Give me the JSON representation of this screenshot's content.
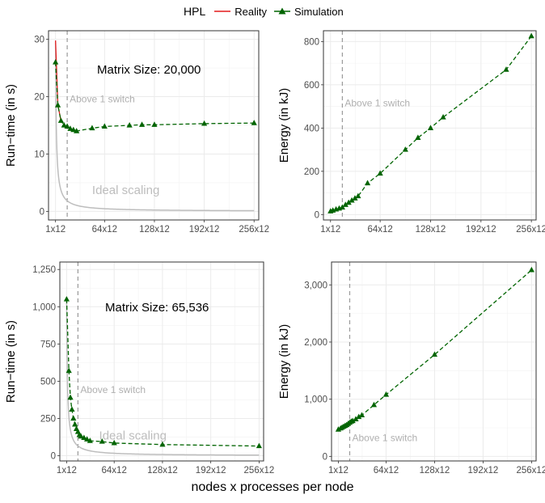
{
  "legend": {
    "title": "HPL",
    "items": [
      {
        "label": "Reality",
        "color": "#e31a1c",
        "shape": "line"
      },
      {
        "label": "Simulation",
        "color": "#006400",
        "shape": "line-triangle"
      }
    ]
  },
  "x_axis_label": "nodes x processes per node",
  "y_labels": {
    "runtime": "Run−time (in s)",
    "energy": "Energy (in kJ)"
  },
  "annotations": {
    "switch": "Above 1 switch",
    "ideal": "Ideal scaling"
  },
  "chart_data": [
    {
      "type": "line",
      "panel": "top-left",
      "annotation": "Matrix Size: 20,000",
      "xlim": [
        -8,
        262
      ],
      "ylim": [
        -1.5,
        31.5
      ],
      "x_ticks": [
        1,
        64,
        128,
        192,
        256
      ],
      "x_tick_labels": [
        "1x12",
        "64x12",
        "128x12",
        "192x12",
        "256x12"
      ],
      "y_ticks": [
        0,
        10,
        20,
        30
      ],
      "y_tick_labels": [
        "0",
        "10",
        "20",
        "30"
      ],
      "switch_x": 16,
      "ideal_t1": 29.5,
      "ideal_label_at": {
        "x": 48,
        "y": 3
      },
      "series": [
        {
          "name": "Reality",
          "color": "#e31a1c",
          "marker": "none",
          "x": [
            1,
            4,
            8
          ],
          "y": [
            29.8,
            18.6,
            15.8
          ]
        },
        {
          "name": "Simulation",
          "color": "#006400",
          "marker": "triangle",
          "x": [
            1,
            4,
            8,
            12,
            16,
            20,
            24,
            28,
            48,
            64,
            96,
            112,
            128,
            192,
            256
          ],
          "y": [
            26,
            18.5,
            15.8,
            15.0,
            14.8,
            14.4,
            14.2,
            14.0,
            14.5,
            14.8,
            15.0,
            15.1,
            15.1,
            15.3,
            15.4
          ]
        }
      ]
    },
    {
      "type": "line",
      "panel": "top-right",
      "xlim": [
        -8,
        262
      ],
      "ylim": [
        -25,
        850
      ],
      "x_ticks": [
        1,
        64,
        128,
        192,
        256
      ],
      "x_tick_labels": [
        "1x12",
        "64x12",
        "128x12",
        "192x12",
        "256x12"
      ],
      "y_ticks": [
        0,
        200,
        400,
        600,
        800
      ],
      "y_tick_labels": [
        "0",
        "200",
        "400",
        "600",
        "800"
      ],
      "switch_x": 16,
      "series": [
        {
          "name": "Simulation",
          "color": "#006400",
          "marker": "triangle",
          "x": [
            1,
            4,
            8,
            12,
            16,
            20,
            24,
            28,
            32,
            36,
            48,
            64,
            96,
            112,
            128,
            144,
            224,
            256
          ],
          "y": [
            15,
            19,
            24,
            28,
            33,
            45,
            55,
            65,
            75,
            85,
            145,
            190,
            300,
            355,
            400,
            450,
            670,
            825
          ]
        }
      ]
    },
    {
      "type": "line",
      "panel": "bottom-left",
      "annotation": "Matrix Size: 65,536",
      "xlim": [
        -8,
        262
      ],
      "ylim": [
        -35,
        1300
      ],
      "x_ticks": [
        1,
        64,
        128,
        192,
        256
      ],
      "x_tick_labels": [
        "1x12",
        "64x12",
        "128x12",
        "192x12",
        "256x12"
      ],
      "y_ticks": [
        0,
        250,
        500,
        750,
        1000,
        1250
      ],
      "y_tick_labels": [
        "0",
        "250",
        "500",
        "750",
        "1,000",
        "1,250"
      ],
      "switch_x": 16,
      "ideal_t1": 1050,
      "ideal_label_at": {
        "x": 44,
        "y": 110
      },
      "series": [
        {
          "name": "Simulation",
          "color": "#006400",
          "marker": "triangle",
          "x": [
            1,
            4,
            6,
            8,
            10,
            12,
            14,
            16,
            18,
            20,
            24,
            28,
            32,
            48,
            64,
            128,
            256
          ],
          "y": [
            1050,
            570,
            390,
            310,
            250,
            210,
            180,
            160,
            140,
            130,
            120,
            110,
            100,
            95,
            85,
            75,
            65
          ]
        }
      ]
    },
    {
      "type": "line",
      "panel": "bottom-right",
      "xlim": [
        -8,
        262
      ],
      "ylim": [
        -80,
        3400
      ],
      "x_ticks": [
        1,
        64,
        128,
        192,
        256
      ],
      "x_tick_labels": [
        "1x12",
        "64x12",
        "128x12",
        "192x12",
        "256x12"
      ],
      "y_ticks": [
        0,
        1000,
        2000,
        3000
      ],
      "y_tick_labels": [
        "0",
        "1,000",
        "2,000",
        "3,000"
      ],
      "switch_x": 16,
      "series": [
        {
          "name": "Simulation",
          "color": "#006400",
          "marker": "triangle",
          "x": [
            1,
            4,
            6,
            8,
            10,
            12,
            14,
            16,
            18,
            20,
            24,
            28,
            32,
            48,
            64,
            128,
            256
          ],
          "y": [
            470,
            490,
            505,
            520,
            535,
            550,
            570,
            590,
            610,
            620,
            650,
            690,
            720,
            900,
            1080,
            1780,
            3260
          ]
        }
      ]
    }
  ]
}
